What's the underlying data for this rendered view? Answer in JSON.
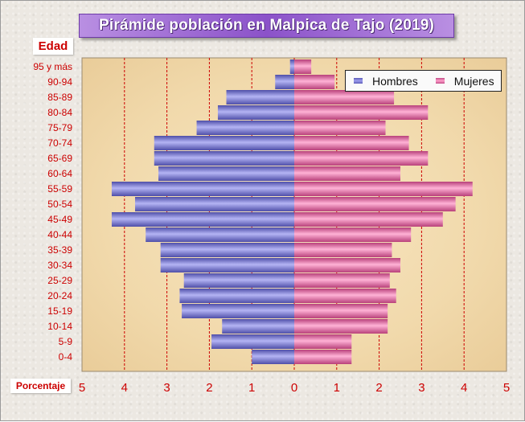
{
  "title": "Pirámide población en Malpica de Tajo (2019)",
  "y_axis_tag": "Edad",
  "x_axis_tag": "Porcentaje",
  "legend": {
    "men": "Hombres",
    "women": "Mujeres"
  },
  "colors": {
    "men": "#8080e0",
    "women": "#f080b8",
    "labels": "#cc0000",
    "title_bg": "#9a66d6",
    "plot_bg": "#f3dfb8"
  },
  "chart_data": {
    "type": "bar",
    "orientation": "horizontal",
    "title": "Pirámide población en Malpica de Tajo (2019)",
    "xlabel": "Porcentaje",
    "ylabel": "Edad",
    "xlim": [
      -5,
      5
    ],
    "x_ticks": [
      "5",
      "4",
      "3",
      "2",
      "1",
      "0",
      "1",
      "2",
      "3",
      "4",
      "5"
    ],
    "grid": "vertical dashed red",
    "legend_position": "top-right",
    "categories": [
      "95 y más",
      "90-94",
      "85-89",
      "80-84",
      "75-79",
      "70-74",
      "65-69",
      "60-64",
      "55-59",
      "50-54",
      "45-49",
      "40-44",
      "35-39",
      "30-34",
      "25-29",
      "20-24",
      "15-19",
      "10-14",
      "5-9",
      "0-4"
    ],
    "series": [
      {
        "name": "Hombres",
        "values": [
          0.1,
          0.45,
          1.6,
          1.8,
          2.3,
          3.3,
          3.3,
          3.2,
          4.3,
          3.75,
          4.3,
          3.5,
          3.15,
          3.15,
          2.6,
          2.7,
          2.65,
          1.7,
          1.95,
          1.0
        ]
      },
      {
        "name": "Mujeres",
        "values": [
          0.4,
          0.95,
          2.35,
          3.15,
          2.15,
          2.7,
          3.15,
          2.5,
          4.2,
          3.8,
          3.5,
          2.75,
          2.3,
          2.5,
          2.25,
          2.4,
          2.2,
          2.2,
          1.35,
          1.35
        ]
      }
    ]
  }
}
